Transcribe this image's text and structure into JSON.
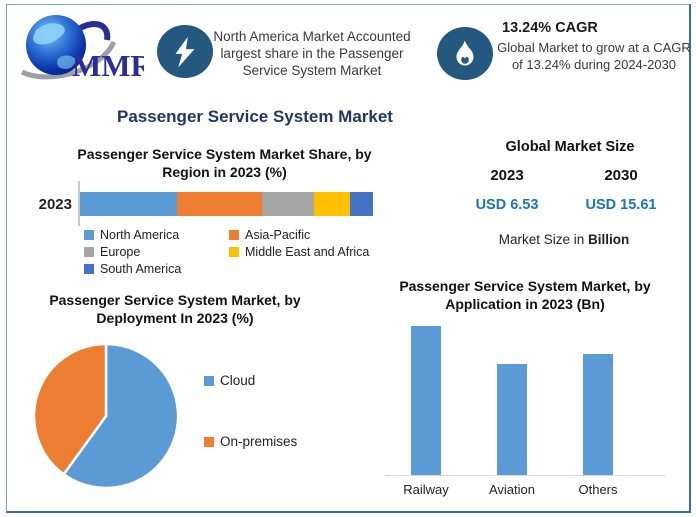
{
  "header": {
    "logo": {
      "text": "MMR"
    },
    "highlight1": {
      "icon": "lightning-icon",
      "text": "North America Market Accounted largest share in the Passenger Service System Market"
    },
    "highlight2": {
      "icon": "flame-icon",
      "title": "13.24% CAGR",
      "text": "Global Market to grow at a CAGR of 13.24% during 2024-2030"
    }
  },
  "page_title": "Passenger Service System Market",
  "market_size": {
    "title": "Global Market Size",
    "columns": [
      {
        "year": "2023",
        "value": "USD 6.53"
      },
      {
        "year": "2030",
        "value": "USD 15.61"
      }
    ],
    "note_prefix": "Market Size in ",
    "note_bold": "Billion"
  },
  "colors": {
    "title_navy": "#1F3864",
    "icon_circle_blue": "#24587E",
    "usd_value_blue": "#1B75BC",
    "frame_border_blue": "#2E6FAE"
  },
  "chart_data": [
    {
      "type": "bar",
      "orientation": "horizontal-stacked",
      "title": "Passenger Service System Market Share, by Region in 2023 (%)",
      "categories": [
        "2023"
      ],
      "series": [
        {
          "name": "North America",
          "color": "#5B9BD5",
          "values": [
            33
          ]
        },
        {
          "name": "Asia-Pacific",
          "color": "#ED7D31",
          "values": [
            29
          ]
        },
        {
          "name": "Europe",
          "color": "#A5A5A5",
          "values": [
            18
          ]
        },
        {
          "name": "Middle East and Africa",
          "color": "#FFC000",
          "values": [
            12
          ]
        },
        {
          "name": "South America",
          "color": "#4472C4",
          "values": [
            8
          ]
        }
      ],
      "xlim": [
        0,
        100
      ],
      "grid": false,
      "legend_position": "bottom"
    },
    {
      "type": "pie",
      "title": "Passenger Service System Market, by Deployment In 2023 (%)",
      "labels": [
        "Cloud",
        "On-premises"
      ],
      "values": [
        60,
        40
      ],
      "colors": [
        "#5B9BD5",
        "#ED7D31"
      ],
      "start_angle_deg": 0,
      "legend_position": "right"
    },
    {
      "type": "bar",
      "title": "Passenger Service System Market, by Application in 2023 (Bn)",
      "categories": [
        "Railway",
        "Aviation",
        "Others"
      ],
      "values": [
        2.56,
        1.9,
        2.07
      ],
      "ylim": [
        0,
        3
      ],
      "bar_color": "#5B9BD5",
      "grid": false,
      "xlabel": "",
      "ylabel": ""
    }
  ]
}
